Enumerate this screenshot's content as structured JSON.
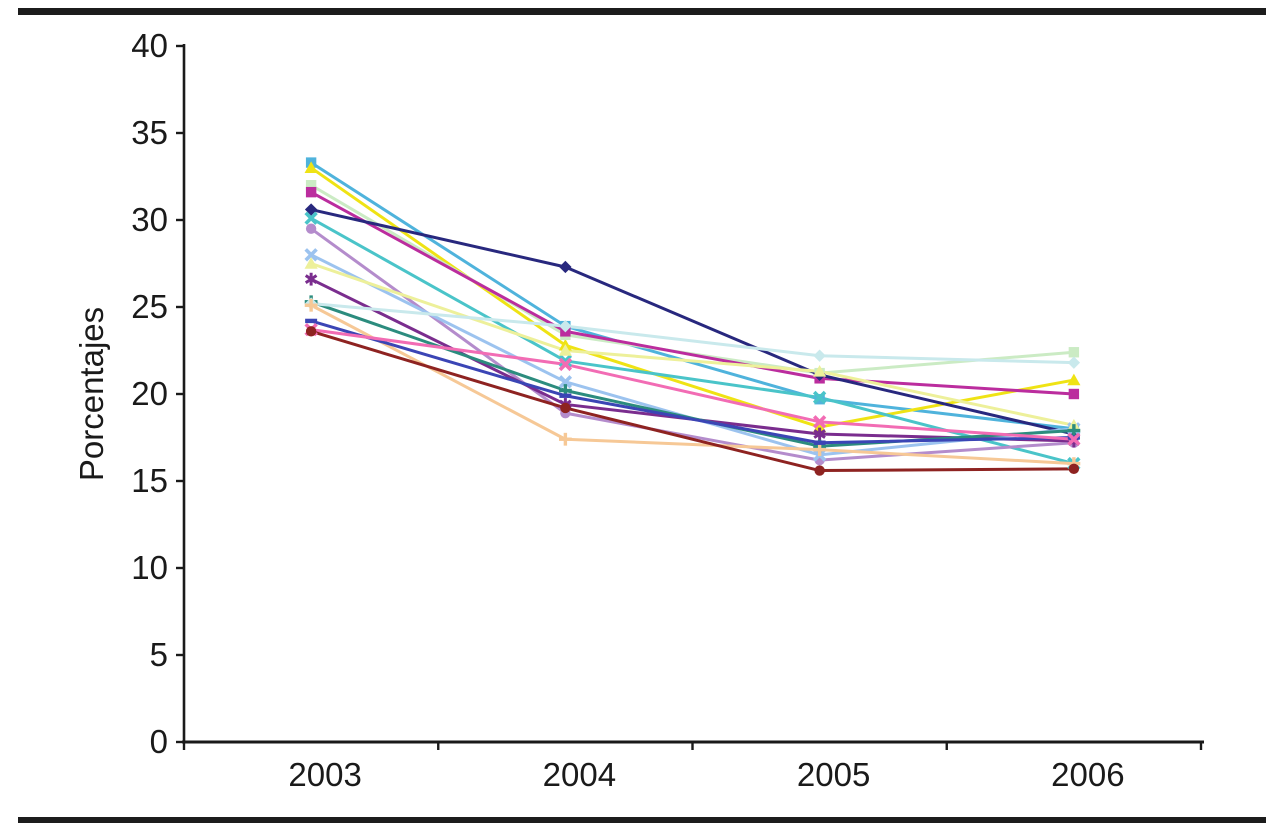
{
  "chart_data": {
    "type": "line",
    "title": "",
    "ylabel": "Porcentajes",
    "xlabel": "",
    "categories": [
      "2003",
      "2004",
      "2005",
      "2006"
    ],
    "ylim": [
      0,
      40
    ],
    "yticks": [
      0,
      5,
      10,
      15,
      20,
      25,
      30,
      35,
      40
    ],
    "grid": false,
    "legend": "none",
    "axis_color": "#1a1a1a",
    "series": [
      {
        "name": "sky-blue-square",
        "color": "#4FB3DC",
        "marker": "square",
        "values": [
          33.3,
          23.9,
          19.7,
          18.0
        ]
      },
      {
        "name": "yellow-triangle",
        "color": "#EFE314",
        "marker": "triangle",
        "values": [
          33.0,
          22.8,
          18.1,
          20.8
        ]
      },
      {
        "name": "pale-green-square",
        "color": "#CBEBC4",
        "marker": "square",
        "values": [
          32.0,
          23.4,
          21.2,
          22.4
        ]
      },
      {
        "name": "magenta-square",
        "color": "#BB2D9E",
        "marker": "square",
        "values": [
          31.6,
          23.6,
          20.9,
          20.0
        ]
      },
      {
        "name": "navy-diamond",
        "color": "#28287E",
        "marker": "diamond",
        "values": [
          30.6,
          27.3,
          21.1,
          17.7
        ]
      },
      {
        "name": "turquoise-x",
        "color": "#4AC4C9",
        "marker": "x",
        "values": [
          30.1,
          21.9,
          19.8,
          16.0
        ]
      },
      {
        "name": "lavender-circle",
        "color": "#B48CCC",
        "marker": "circle",
        "values": [
          29.5,
          18.9,
          16.2,
          17.2
        ]
      },
      {
        "name": "light-blue-x",
        "color": "#9CC3EF",
        "marker": "x",
        "values": [
          28.0,
          20.7,
          16.5,
          18.0
        ]
      },
      {
        "name": "pale-yellow-triangle",
        "color": "#EDF09A",
        "marker": "triangle",
        "values": [
          27.5,
          22.5,
          21.3,
          18.2
        ]
      },
      {
        "name": "purple-asterisk",
        "color": "#7A2D8E",
        "marker": "asterisk",
        "values": [
          26.6,
          19.4,
          17.7,
          17.3
        ]
      },
      {
        "name": "teal-plus",
        "color": "#2C8C7E",
        "marker": "plus",
        "values": [
          25.3,
          20.2,
          17.0,
          17.9
        ]
      },
      {
        "name": "pale-cyan-diamond",
        "color": "#C9E9EC",
        "marker": "diamond",
        "values": [
          25.2,
          23.9,
          22.2,
          21.8
        ]
      },
      {
        "name": "tan-plus",
        "color": "#F6C896",
        "marker": "plus",
        "values": [
          25.1,
          17.4,
          16.8,
          16.0
        ]
      },
      {
        "name": "royal-blue-dash",
        "color": "#3B45B5",
        "marker": "dash",
        "values": [
          24.2,
          19.9,
          17.2,
          17.5
        ]
      },
      {
        "name": "pink-x",
        "color": "#F26CB4",
        "marker": "x",
        "values": [
          23.7,
          21.7,
          18.4,
          17.4
        ]
      },
      {
        "name": "maroon-circle",
        "color": "#8E2321",
        "marker": "circle",
        "values": [
          23.6,
          19.2,
          15.6,
          15.7
        ]
      }
    ]
  }
}
